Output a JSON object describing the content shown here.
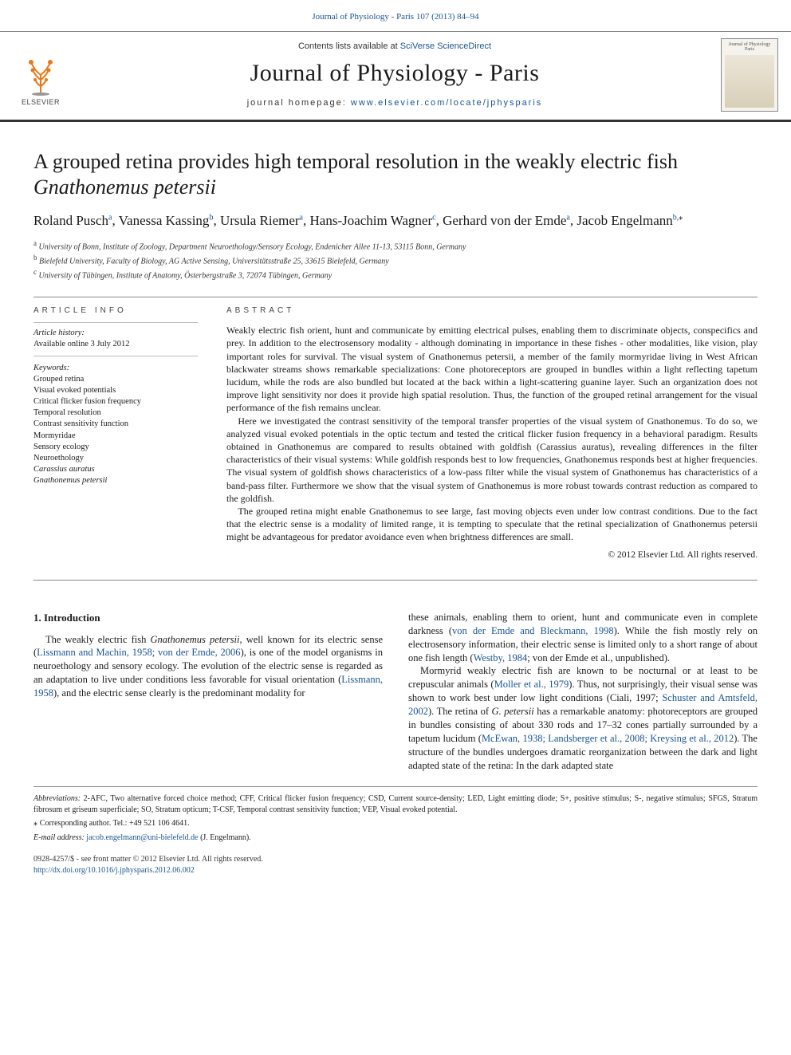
{
  "top_link": {
    "prefix": "Journal of Physiology - Paris 107 (2013) 84–94",
    "href_text": "Journal of Physiology - Paris 107 (2013) 84–94"
  },
  "masthead": {
    "elsevier_word": "ELSEVIER",
    "contents_prefix": "Contents lists available at ",
    "contents_link": "SciVerse ScienceDirect",
    "journal_title": "Journal of Physiology - Paris",
    "homepage_prefix": "journal homepage: ",
    "homepage_link": "www.elsevier.com/locate/jphysparis",
    "cover_title": "Journal of Physiology Paris"
  },
  "article": {
    "title_plain": "A grouped retina provides high temporal resolution in the weakly electric fish ",
    "title_species": "Gnathonemus petersii",
    "authors_html": [
      {
        "name": "Roland Pusch",
        "aff": "a"
      },
      {
        "name": "Vanessa Kassing",
        "aff": "b"
      },
      {
        "name": "Ursula Riemer",
        "aff": "a"
      },
      {
        "name": "Hans-Joachim Wagner",
        "aff": "c"
      },
      {
        "name": "Gerhard von der Emde",
        "aff": "a"
      },
      {
        "name": "Jacob Engelmann",
        "aff": "b,",
        "corr": true
      }
    ],
    "affiliations": [
      {
        "sup": "a",
        "text": "University of Bonn, Institute of Zoology, Department Neuroethology/Sensory Ecology, Endenicher Allee 11-13, 53115 Bonn, Germany"
      },
      {
        "sup": "b",
        "text": "Bielefeld University, Faculty of Biology, AG Active Sensing, Universitätsstraße 25, 33615 Bielefeld, Germany"
      },
      {
        "sup": "c",
        "text": "University of Tübingen, Institute of Anatomy, Österbergstraße 3, 72074 Tübingen, Germany"
      }
    ]
  },
  "meta": {
    "info_heading": "ARTICLE INFO",
    "abstract_heading": "ABSTRACT",
    "history_label": "Article history:",
    "history_line": "Available online 3 July 2012",
    "keywords_label": "Keywords:",
    "keywords": [
      "Grouped retina",
      "Visual evoked potentials",
      "Critical flicker fusion frequency",
      "Temporal resolution",
      "Contrast sensitivity function",
      "Mormyridae",
      "Sensory ecology",
      "Neuroethology"
    ],
    "keywords_species": [
      "Carassius auratus",
      "Gnathonemus petersii"
    ]
  },
  "abstract": {
    "p1": "Weakly electric fish orient, hunt and communicate by emitting electrical pulses, enabling them to discriminate objects, conspecifics and prey. In addition to the electrosensory modality - although dominating in importance in these fishes - other modalities, like vision, play important roles for survival. The visual system of Gnathonemus petersii, a member of the family mormyridae living in West African blackwater streams shows remarkable specializations: Cone photoreceptors are grouped in bundles within a light reflecting tapetum lucidum, while the rods are also bundled but located at the back within a light-scattering guanine layer. Such an organization does not improve light sensitivity nor does it provide high spatial resolution. Thus, the function of the grouped retinal arrangement for the visual performance of the fish remains unclear.",
    "p2": "Here we investigated the contrast sensitivity of the temporal transfer properties of the visual system of Gnathonemus. To do so, we analyzed visual evoked potentials in the optic tectum and tested the critical flicker fusion frequency in a behavioral paradigm. Results obtained in Gnathonemus are compared to results obtained with goldfish (Carassius auratus), revealing differences in the filter characteristics of their visual systems: While goldfish responds best to low frequencies, Gnathonemus responds best at higher frequencies. The visual system of goldfish shows characteristics of a low-pass filter while the visual system of Gnathonemus has characteristics of a band-pass filter. Furthermore we show that the visual system of Gnathonemus is more robust towards contrast reduction as compared to the goldfish.",
    "p3": "The grouped retina might enable Gnathonemus to see large, fast moving objects even under low contrast conditions. Due to the fact that the electric sense is a modality of limited range, it is tempting to speculate that the retinal specialization of Gnathonemus petersii might be advantageous for predator avoidance even when brightness differences are small.",
    "copyright": "© 2012 Elsevier Ltd. All rights reserved."
  },
  "body": {
    "section_heading": "1. Introduction",
    "left_p1a": "The weakly electric fish ",
    "left_p1_species": "Gnathonemus petersii",
    "left_p1b": ", well known for its electric sense (",
    "left_link1": "Lissmann and Machin, 1958; von der Emde, 2006",
    "left_p1c": "), is one of the model organisms in neuroethology and sensory ecology. The evolution of the electric sense is regarded as an adaptation to live under conditions less favorable for visual orientation (",
    "left_link2": "Lissmann, 1958",
    "left_p1d": "), and the electric sense clearly is the predominant modality for",
    "right_p1a": "these animals, enabling them to orient, hunt and communicate even in complete darkness (",
    "right_link1": "von der Emde and Bleckmann, 1998",
    "right_p1b": "). While the fish mostly rely on electrosensory information, their electric sense is limited only to a short range of about one fish length (",
    "right_link2": "Westby, 1984",
    "right_p1c": "; von der Emde et al., unpublished).",
    "right_p2a": "Mormyrid weakly electric fish are known to be nocturnal or at least to be crepuscular animals (",
    "right_link3": "Moller et al., 1979",
    "right_p2b": "). Thus, not surprisingly, their visual sense was shown to work best under low light conditions (Ciali, 1997; ",
    "right_link4": "Schuster and Amtsfeld, 2002",
    "right_p2c": "). The retina of ",
    "right_species": "G. petersii",
    "right_p2d": " has a remarkable anatomy: photoreceptors are grouped in bundles consisting of about 330 rods and 17–32 cones partially surrounded by a tapetum lucidum (",
    "right_link5": "McEwan, 1938; Landsberger et al., 2008; Kreysing et al., 2012",
    "right_p2e": "). The structure of the bundles undergoes dramatic reorganization between the dark and light adapted state of the retina: In the dark adapted state"
  },
  "foot": {
    "abbrev_label": "Abbreviations:",
    "abbrev_text": " 2-AFC, Two alternative forced choice method; CFF, Critical flicker fusion frequency; CSD, Current source-density; LED, Light emitting diode; S+, positive stimulus; S-, negative stimulus; SFGS, Stratum fibrosum et griseum superficiale; SO, Stratum opticum; T-CSF, Temporal contrast sensitivity function; VEP, Visual evoked potential.",
    "corr_label": "Corresponding author. Tel.: +49 521 106 4641.",
    "email_label": "E-mail address: ",
    "email": "jacob.engelmann@uni-bielefeld.de",
    "email_suffix": " (J. Engelmann)."
  },
  "pubfoot": {
    "left_line1": "0928-4257/$ - see front matter © 2012 Elsevier Ltd. All rights reserved.",
    "left_doi": "http://dx.doi.org/10.1016/j.jphysparis.2012.06.002"
  },
  "colors": {
    "link": "#1a5490",
    "rule": "#888888",
    "text": "#1a1a1a"
  }
}
